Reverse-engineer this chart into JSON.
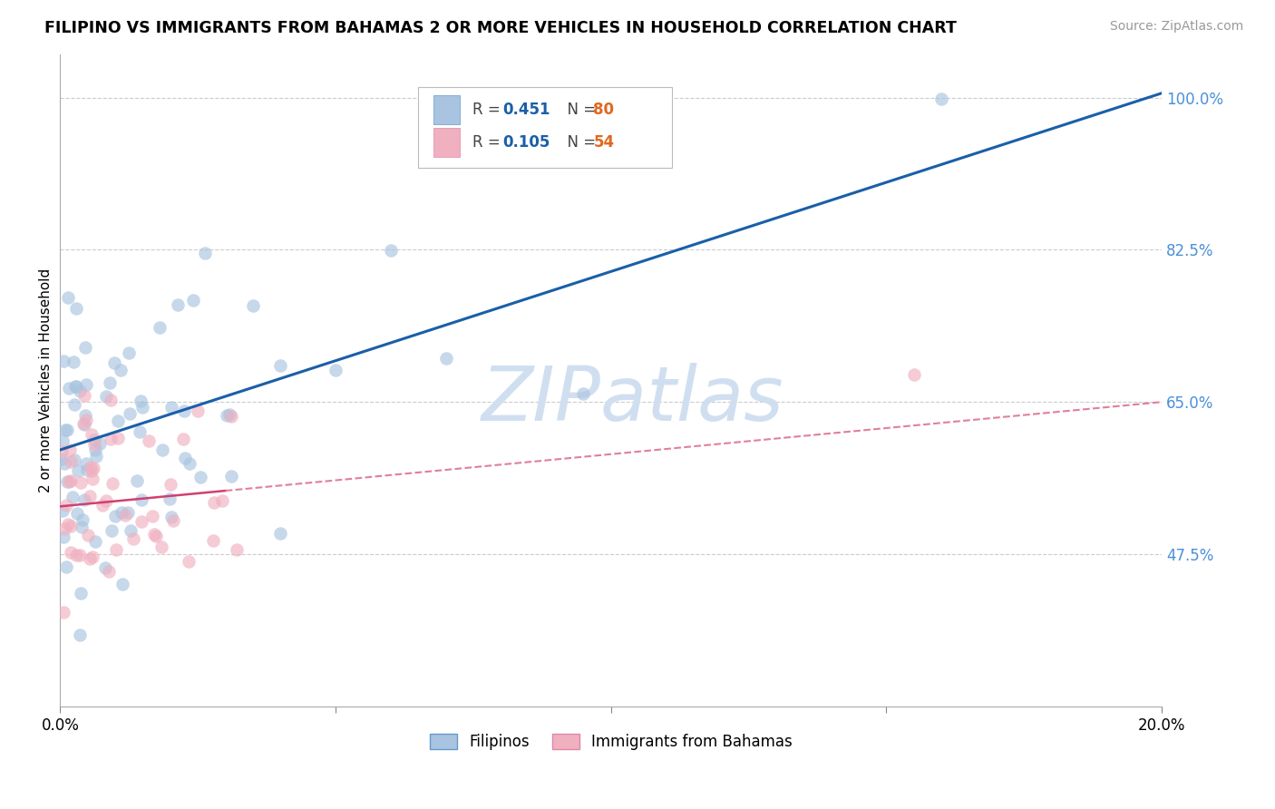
{
  "title": "FILIPINO VS IMMIGRANTS FROM BAHAMAS 2 OR MORE VEHICLES IN HOUSEHOLD CORRELATION CHART",
  "source": "Source: ZipAtlas.com",
  "ylabel": "2 or more Vehicles in Household",
  "xlim": [
    0.0,
    0.2
  ],
  "ylim": [
    0.3,
    1.05
  ],
  "yticks": [
    0.475,
    0.65,
    0.825,
    1.0
  ],
  "ytick_labels": [
    "47.5%",
    "65.0%",
    "82.5%",
    "100.0%"
  ],
  "xticks": [
    0.0,
    0.05,
    0.1,
    0.15,
    0.2
  ],
  "xtick_labels": [
    "0.0%",
    "",
    "",
    "",
    "20.0%"
  ],
  "filipino_R": 0.451,
  "filipino_N": 80,
  "bahamas_R": 0.105,
  "bahamas_N": 54,
  "blue_scatter_color": "#a8c4e0",
  "blue_line_color": "#1a5fa8",
  "pink_scatter_color": "#f0b0c0",
  "pink_line_color": "#d04070",
  "pink_dash_color": "#e08098",
  "watermark_color": "#d0dff0",
  "background_color": "#ffffff",
  "grid_color": "#cccccc",
  "legend_N_color": "#e06820",
  "legend_R_color": "#1a5fa8",
  "legend_N2_color": "#e06820",
  "legend_R2_color": "#1a5fa8"
}
